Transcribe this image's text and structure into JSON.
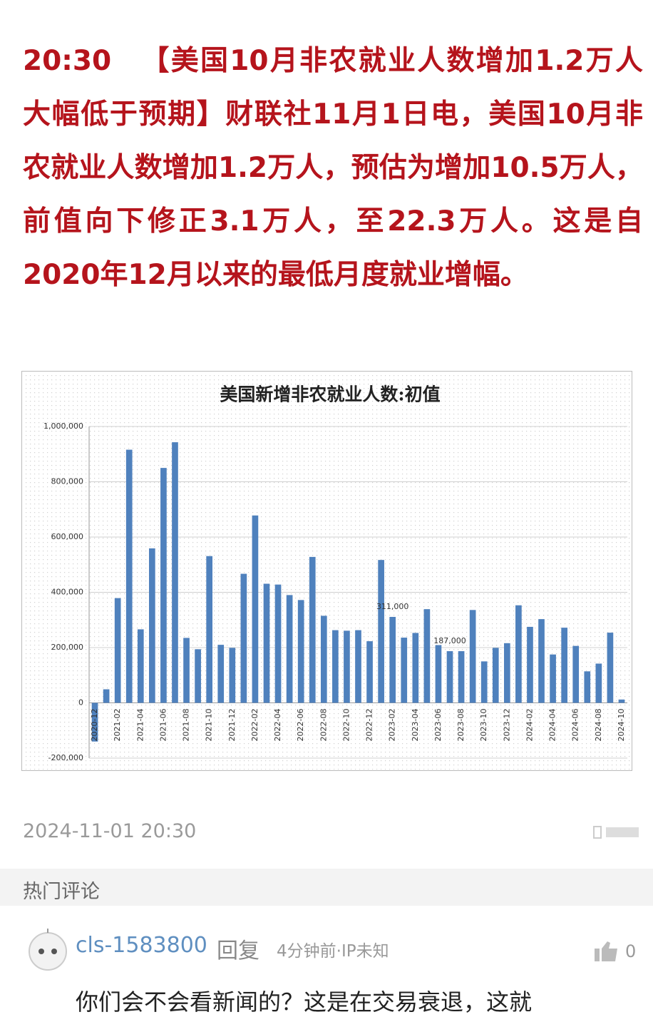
{
  "article": {
    "time": "20:30",
    "body": "【美国10月非农就业人数增加1.2万人 大幅低于预期】财联社11月1日电，美国10月非农就业人数增加1.2万人，预估为增加10.5万人，前值向下修正3.1万人，至22.3万人。这是自2020年12月以来的最低月度就业增幅。"
  },
  "chart_data": {
    "type": "bar",
    "title": "美国新增非农就业人数:初值",
    "categories": [
      "2020-12",
      null,
      "2021-02",
      null,
      "2021-04",
      null,
      "2021-06",
      null,
      "2021-08",
      null,
      "2021-10",
      null,
      "2021-12",
      null,
      "2022-02",
      null,
      "2022-04",
      null,
      "2022-06",
      null,
      "2022-08",
      null,
      "2022-10",
      null,
      "2022-12",
      null,
      "2023-02",
      null,
      "2023-04",
      null,
      "2023-06",
      null,
      "2023-08",
      null,
      "2023-10",
      null,
      "2023-12",
      null,
      "2024-02",
      null,
      "2024-04",
      null,
      "2024-06",
      null,
      "2024-08",
      null,
      "2024-10"
    ],
    "values": [
      -140000,
      49000,
      379000,
      916000,
      266000,
      559000,
      850000,
      943000,
      235000,
      194000,
      531000,
      210000,
      199000,
      467000,
      678000,
      431000,
      428000,
      390000,
      372000,
      528000,
      315000,
      263000,
      261000,
      263000,
      223000,
      517000,
      311000,
      236000,
      253000,
      339000,
      209000,
      187000,
      187000,
      336000,
      150000,
      199000,
      216000,
      353000,
      275000,
      303000,
      175000,
      272000,
      206000,
      114000,
      142000,
      254000,
      12000
    ],
    "value_labels": [
      null,
      null,
      null,
      null,
      null,
      null,
      null,
      null,
      null,
      null,
      null,
      null,
      null,
      null,
      null,
      null,
      null,
      null,
      null,
      null,
      null,
      null,
      null,
      null,
      null,
      null,
      "311,000",
      null,
      null,
      null,
      null,
      "187,000",
      null,
      null,
      null,
      null,
      null,
      null,
      null,
      null,
      null,
      null,
      null,
      null,
      null,
      null,
      null
    ],
    "color": "#4f81bd",
    "ylim": [
      -200000,
      1000000
    ],
    "yticks": [
      {
        "value": -200000,
        "label": "-200,000"
      },
      0,
      {
        "value": 200000,
        "label": "200,000"
      },
      {
        "value": 400000,
        "label": "400,000"
      },
      {
        "value": 600000,
        "label": "600,000"
      },
      {
        "value": 800000,
        "label": "800,000"
      },
      {
        "value": 1000000,
        "label": "1,000,000"
      }
    ],
    "grid": true
  },
  "footer": {
    "timestamp": "2024-11-01 20:30"
  },
  "comments": {
    "title": "热门评论",
    "items": [
      {
        "user": "cls-1583800",
        "reply": "回复",
        "meta": "4分钟前·IP未知",
        "likes": 0,
        "text": "你们会不会看新闻的？这是在交易衰退，这就"
      }
    ]
  }
}
